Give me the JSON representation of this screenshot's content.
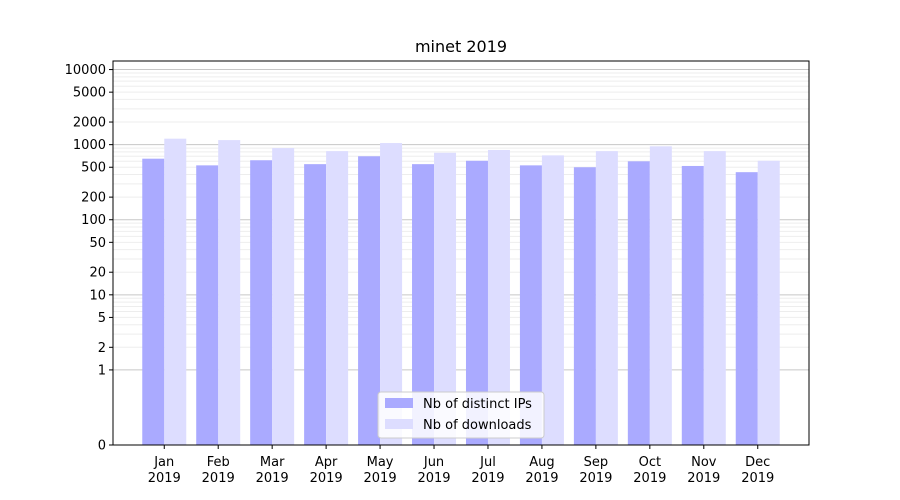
{
  "chart_data": {
    "type": "bar",
    "title": "minet 2019",
    "xlabel": "",
    "ylabel": "",
    "y_scale": "symlog",
    "ylim": [
      0,
      13000
    ],
    "y_ticks": [
      0,
      1,
      2,
      5,
      10,
      20,
      50,
      100,
      200,
      500,
      1000,
      2000,
      5000,
      10000
    ],
    "y_tick_labels": [
      "0",
      "1",
      "2",
      "5",
      "10",
      "20",
      "50",
      "100",
      "200",
      "500",
      "1000",
      "2000",
      "5000",
      "10000"
    ],
    "grid": true,
    "legend_position": "bottom-center",
    "categories": [
      [
        "Jan",
        "2019"
      ],
      [
        "Feb",
        "2019"
      ],
      [
        "Mar",
        "2019"
      ],
      [
        "Apr",
        "2019"
      ],
      [
        "May",
        "2019"
      ],
      [
        "Jun",
        "2019"
      ],
      [
        "Jul",
        "2019"
      ],
      [
        "Aug",
        "2019"
      ],
      [
        "Sep",
        "2019"
      ],
      [
        "Oct",
        "2019"
      ],
      [
        "Nov",
        "2019"
      ],
      [
        "Dec",
        "2019"
      ]
    ],
    "series": [
      {
        "name": "Nb of distinct IPs",
        "color": "#aaaaff",
        "values": [
          650,
          530,
          620,
          550,
          700,
          550,
          610,
          530,
          500,
          600,
          520,
          430
        ]
      },
      {
        "name": "Nb of downloads",
        "color": "#ddddff",
        "values": [
          1200,
          1150,
          900,
          820,
          1050,
          780,
          850,
          720,
          820,
          950,
          820,
          610
        ]
      }
    ]
  }
}
